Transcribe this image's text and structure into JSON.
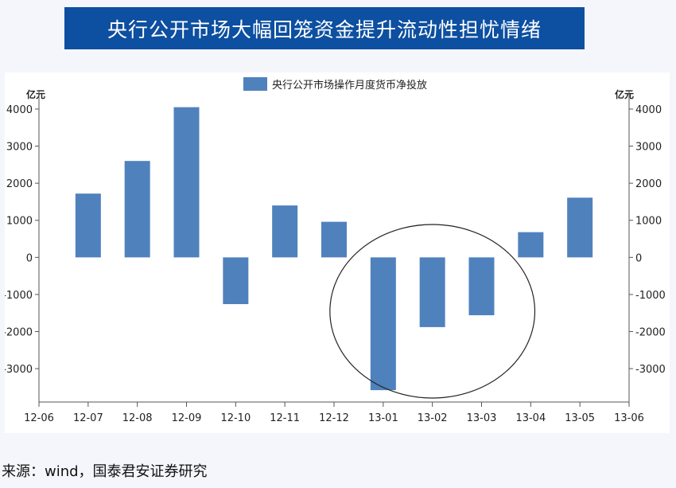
{
  "title": "央行公开市场大幅回笼资金提升流动性担忧情绪",
  "source": "来源：wind，国泰君安证券研究",
  "chart_data": {
    "type": "bar",
    "categories": [
      "12-06",
      "12-07",
      "12-08",
      "12-09",
      "12-10",
      "12-11",
      "12-12",
      "13-01",
      "13-02",
      "13-03",
      "13-04",
      "13-05",
      "13-06"
    ],
    "series": [
      {
        "name": "央行公开市场操作月度货币净投放",
        "values": [
          null,
          1720,
          2600,
          4050,
          -1260,
          1400,
          960,
          -3580,
          -1880,
          -1560,
          680,
          1610,
          null
        ]
      }
    ],
    "left_unit": "亿元",
    "right_unit": "亿元",
    "ylim": [
      -3900,
      4300
    ],
    "yticks": [
      -3000,
      -2000,
      -1000,
      0,
      1000,
      2000,
      3000,
      4000
    ],
    "legend_position": "top-center",
    "grid": false,
    "colors": {
      "bar": "#4f81bd",
      "axis": "#555555"
    },
    "annotation": {
      "shape": "ellipse",
      "highlights": [
        "13-01",
        "13-02",
        "13-03"
      ]
    }
  }
}
